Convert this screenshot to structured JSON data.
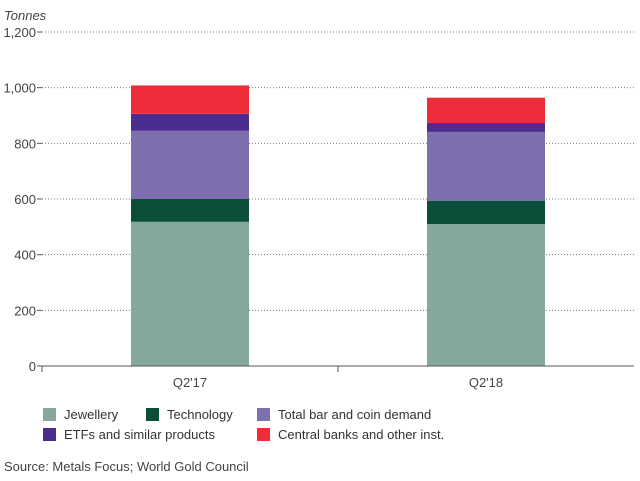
{
  "chart_data": {
    "type": "bar",
    "stacked": true,
    "ylabel": "Tonnes",
    "ylim": [
      0,
      1200
    ],
    "yticks": [
      0,
      200,
      400,
      600,
      800,
      1000,
      1200
    ],
    "ytick_labels": [
      "0",
      "200",
      "400",
      "600",
      "800",
      "1,000",
      "1,200"
    ],
    "categories": [
      "Q2'17",
      "Q2'18"
    ],
    "series": [
      {
        "name": "Jewellery",
        "color": "#86a89a",
        "values": [
          518,
          510
        ]
      },
      {
        "name": "Technology",
        "color": "#0b4f3a",
        "values": [
          82,
          84
        ]
      },
      {
        "name": "Total bar and coin demand",
        "color": "#7e6fae",
        "values": [
          245,
          247
        ]
      },
      {
        "name": "ETFs and similar products",
        "color": "#4b2c8f",
        "values": [
          61,
          32
        ]
      },
      {
        "name": "Central banks and other inst.",
        "color": "#ee2d3a",
        "values": [
          102,
          91
        ]
      }
    ],
    "grid": true,
    "legend_position": "bottom"
  },
  "source": "Source: Metals Focus; World Gold Council"
}
